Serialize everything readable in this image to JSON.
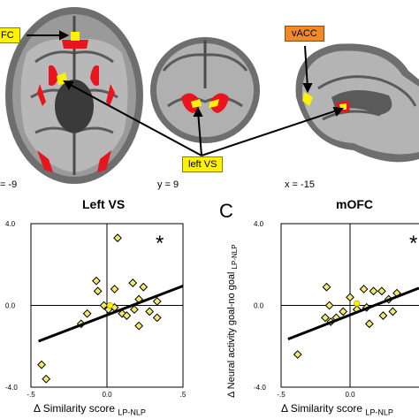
{
  "figure": {
    "callouts": {
      "mofc": "FC",
      "vacc": "vACC",
      "left_vs": "left VS"
    },
    "coords": {
      "axial": "= -9",
      "coronal": "y = 9",
      "sagittal": "x = -15"
    },
    "panel_letter_c": "C",
    "y_axis_label": "Δ Neural activity goal-no goal",
    "y_axis_sub": "LP-NLP",
    "x_axis_label": "Δ Similarity score",
    "x_axis_sub": "LP-NLP",
    "significance_mark": "*"
  },
  "colors": {
    "activation": "#e8141e",
    "peak": "#fff200",
    "point_fill": "#f3ea6a",
    "point_fill_bright": "#fff200",
    "regression": "#000000",
    "callout_orange": "#f08a28"
  },
  "chart_data": [
    {
      "type": "scatter",
      "title": "Left VS",
      "xlim": [
        -0.5,
        0.5
      ],
      "ylim": [
        -4.0,
        4.0
      ],
      "x_ticks": [
        "-.5",
        "0.0",
        ".5"
      ],
      "y_ticks": [
        "4.0",
        "0.0",
        "-4.0"
      ],
      "points": [
        {
          "x": -0.43,
          "y": -2.9,
          "shape": "diamond"
        },
        {
          "x": -0.4,
          "y": -3.6,
          "shape": "diamond"
        },
        {
          "x": 0.07,
          "y": 3.3,
          "shape": "diamond"
        },
        {
          "x": -0.07,
          "y": 1.2,
          "shape": "diamond"
        },
        {
          "x": -0.06,
          "y": 0.7,
          "shape": "diamond"
        },
        {
          "x": 0.05,
          "y": 0.8,
          "shape": "diamond"
        },
        {
          "x": 0.17,
          "y": 1.1,
          "shape": "diamond"
        },
        {
          "x": 0.24,
          "y": 0.9,
          "shape": "diamond"
        },
        {
          "x": 0.21,
          "y": 0.3,
          "shape": "diamond"
        },
        {
          "x": -0.13,
          "y": -0.4,
          "shape": "diamond"
        },
        {
          "x": -0.02,
          "y": 0.0,
          "shape": "diamond"
        },
        {
          "x": 0.01,
          "y": -0.2,
          "shape": "diamond"
        },
        {
          "x": 0.05,
          "y": -0.1,
          "shape": "diamond"
        },
        {
          "x": 0.1,
          "y": -0.4,
          "shape": "diamond"
        },
        {
          "x": 0.13,
          "y": -0.5,
          "shape": "diamond"
        },
        {
          "x": 0.18,
          "y": -0.2,
          "shape": "diamond"
        },
        {
          "x": 0.28,
          "y": -0.3,
          "shape": "diamond"
        },
        {
          "x": 0.33,
          "y": 0.2,
          "shape": "diamond"
        },
        {
          "x": 0.33,
          "y": -0.6,
          "shape": "diamond"
        },
        {
          "x": 0.21,
          "y": -1.0,
          "shape": "diamond"
        },
        {
          "x": -0.17,
          "y": -0.9,
          "shape": "diamond"
        },
        {
          "x": 0.02,
          "y": 0.0,
          "shape": "circle"
        }
      ],
      "regression": {
        "x": [
          -0.45,
          0.5
        ],
        "y": [
          -1.75,
          0.95
        ]
      }
    },
    {
      "type": "scatter",
      "title": "mOFC",
      "xlim": [
        -0.5,
        0.5
      ],
      "ylim": [
        -4.0,
        4.0
      ],
      "x_ticks": [
        "-.5",
        "0.0"
      ],
      "y_ticks": [
        "4.0",
        "0.0",
        "-4.0"
      ],
      "points": [
        {
          "x": -0.38,
          "y": -2.4,
          "shape": "diamond"
        },
        {
          "x": -0.17,
          "y": 0.9,
          "shape": "diamond"
        },
        {
          "x": -0.15,
          "y": 0.0,
          "shape": "diamond"
        },
        {
          "x": -0.18,
          "y": -0.6,
          "shape": "diamond"
        },
        {
          "x": -0.14,
          "y": -0.8,
          "shape": "diamond"
        },
        {
          "x": -0.1,
          "y": -0.6,
          "shape": "diamond"
        },
        {
          "x": -0.05,
          "y": -0.3,
          "shape": "diamond"
        },
        {
          "x": 0.0,
          "y": 0.4,
          "shape": "diamond"
        },
        {
          "x": 0.05,
          "y": -0.2,
          "shape": "diamond"
        },
        {
          "x": 0.1,
          "y": 0.8,
          "shape": "diamond"
        },
        {
          "x": 0.17,
          "y": 0.7,
          "shape": "diamond"
        },
        {
          "x": 0.23,
          "y": 0.7,
          "shape": "diamond"
        },
        {
          "x": 0.28,
          "y": 0.3,
          "shape": "diamond"
        },
        {
          "x": 0.12,
          "y": -0.1,
          "shape": "diamond"
        },
        {
          "x": 0.14,
          "y": -0.9,
          "shape": "diamond"
        },
        {
          "x": 0.24,
          "y": -0.5,
          "shape": "diamond"
        },
        {
          "x": 0.31,
          "y": -0.3,
          "shape": "diamond"
        },
        {
          "x": 0.34,
          "y": 0.6,
          "shape": "diamond"
        },
        {
          "x": 0.05,
          "y": 0.1,
          "shape": "circle"
        }
      ],
      "regression": {
        "x": [
          -0.45,
          0.5
        ],
        "y": [
          -1.65,
          0.85
        ]
      }
    }
  ]
}
